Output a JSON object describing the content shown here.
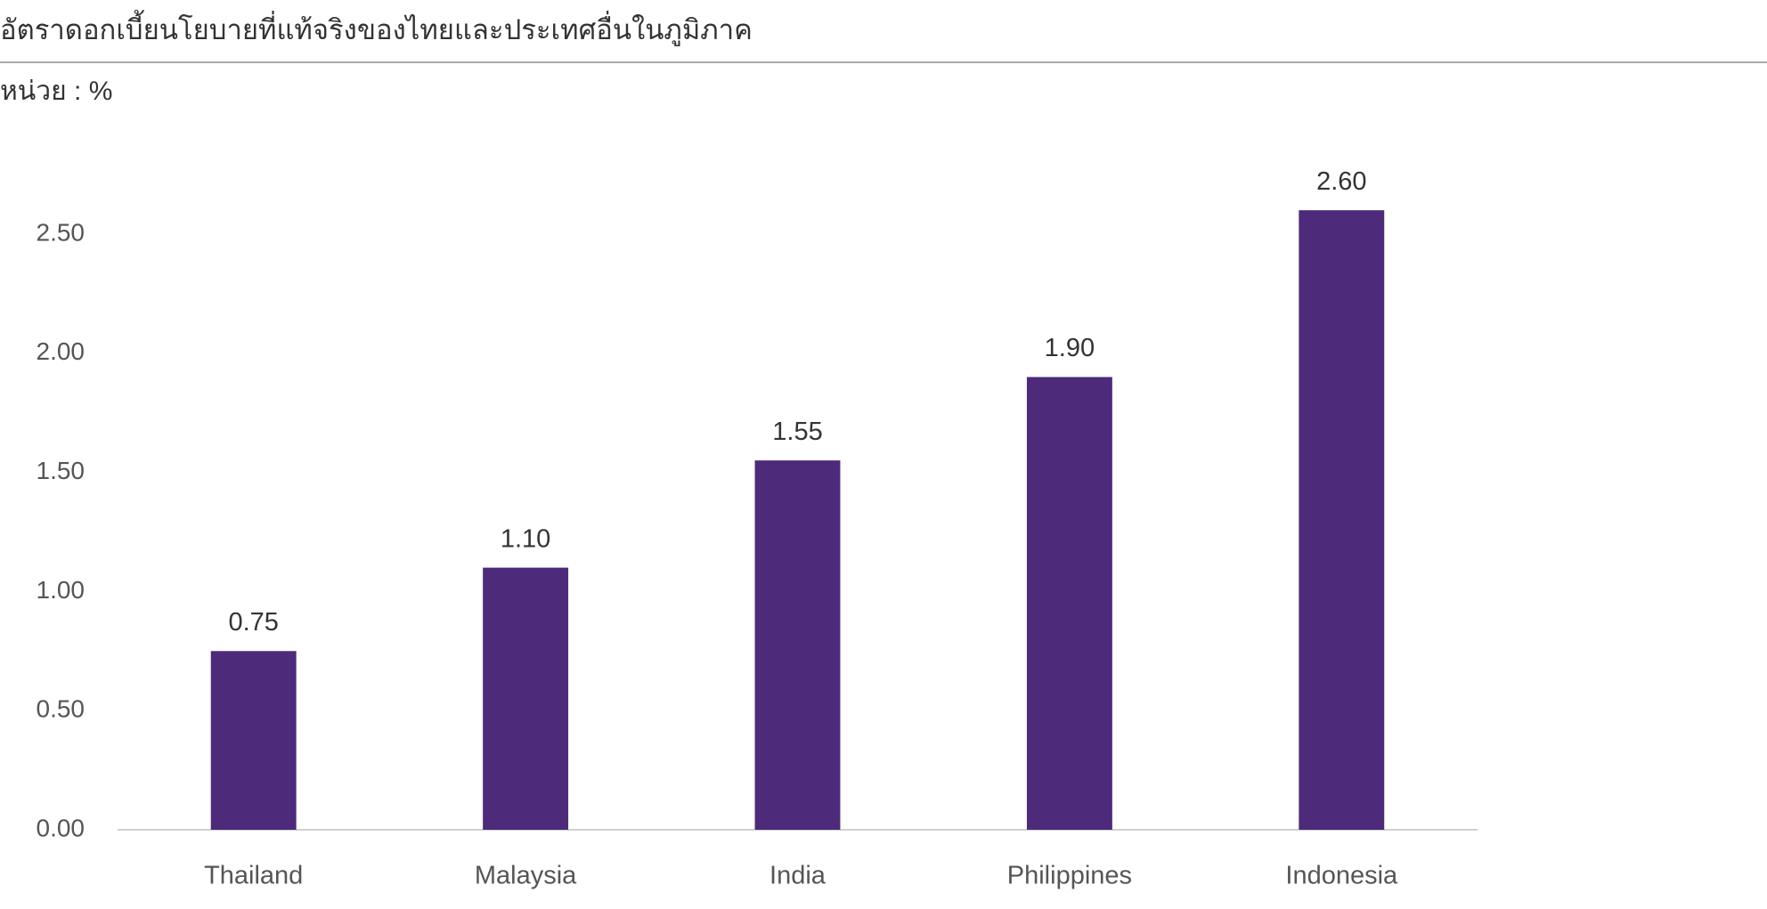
{
  "chart_data": {
    "type": "bar",
    "title": "อัตราดอกเบี้ยนโยบายที่แท้จริงของไทยและประเทศอื่นในภูมิภาค",
    "subtitle": "หน่วย : %",
    "categories": [
      "Thailand",
      "Malaysia",
      "India",
      "Philippines",
      "Indonesia"
    ],
    "values": [
      0.75,
      1.1,
      1.55,
      1.9,
      2.6
    ],
    "value_labels": [
      "0.75",
      "1.10",
      "1.55",
      "1.90",
      "2.60"
    ],
    "color": "#4e2a7b",
    "ylim": [
      0,
      2.75
    ],
    "yticks": [
      {
        "value": 0,
        "label": "0.00"
      },
      {
        "value": 0.5,
        "label": "0.50"
      },
      {
        "value": 1,
        "label": "1.00"
      },
      {
        "value": 1.5,
        "label": "1.50"
      },
      {
        "value": 2,
        "label": "2.00"
      },
      {
        "value": 2.5,
        "label": "2.50"
      }
    ],
    "grid": false
  }
}
